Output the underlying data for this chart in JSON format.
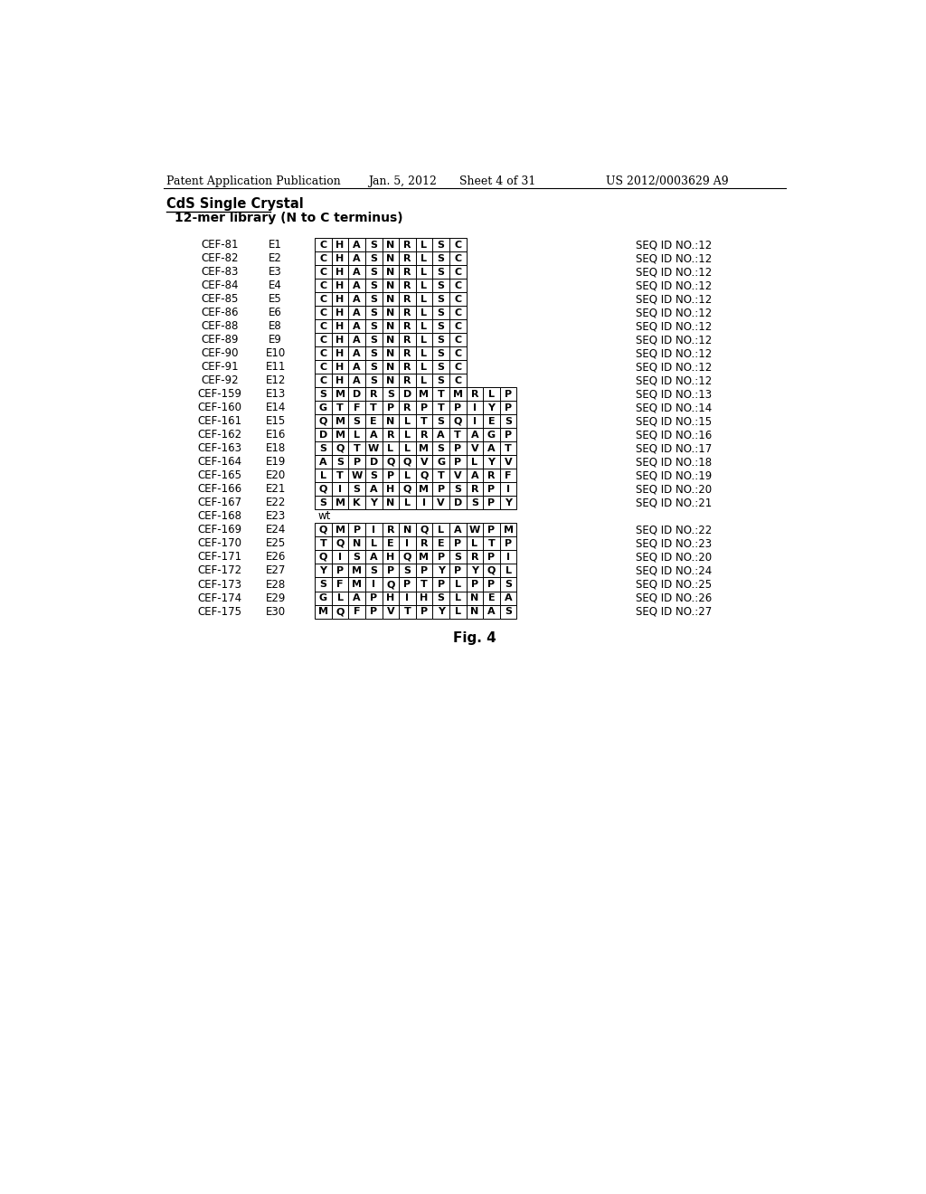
{
  "header_left": "Patent Application Publication",
  "header_date": "Jan. 5, 2012",
  "header_sheet": "Sheet 4 of 31",
  "header_right": "US 2012/0003629 A9",
  "title1": "CdS Single Crystal",
  "title2": "12-mer library (N to C terminus)",
  "fig_label": "Fig. 4",
  "rows": [
    {
      "cef": "CEF-81",
      "e": "E1",
      "seq": "C H A S N R L S C",
      "seq_id": "SEQ ID NO.:12",
      "wt": false,
      "short": true
    },
    {
      "cef": "CEF-82",
      "e": "E2",
      "seq": "C H A S N R L S C",
      "seq_id": "SEQ ID NO.:12",
      "wt": false,
      "short": true
    },
    {
      "cef": "CEF-83",
      "e": "E3",
      "seq": "C H A S N R L S C",
      "seq_id": "SEQ ID NO.:12",
      "wt": false,
      "short": true
    },
    {
      "cef": "CEF-84",
      "e": "E4",
      "seq": "C H A S N R L S C",
      "seq_id": "SEQ ID NO.:12",
      "wt": false,
      "short": true
    },
    {
      "cef": "CEF-85",
      "e": "E5",
      "seq": "C H A S N R L S C",
      "seq_id": "SEQ ID NO.:12",
      "wt": false,
      "short": true
    },
    {
      "cef": "CEF-86",
      "e": "E6",
      "seq": "C H A S N R L S C",
      "seq_id": "SEQ ID NO.:12",
      "wt": false,
      "short": true
    },
    {
      "cef": "CEF-88",
      "e": "E8",
      "seq": "C H A S N R L S C",
      "seq_id": "SEQ ID NO.:12",
      "wt": false,
      "short": true
    },
    {
      "cef": "CEF-89",
      "e": "E9",
      "seq": "C H A S N R L S C",
      "seq_id": "SEQ ID NO.:12",
      "wt": false,
      "short": true
    },
    {
      "cef": "CEF-90",
      "e": "E10",
      "seq": "C H A S N R L S C",
      "seq_id": "SEQ ID NO.:12",
      "wt": false,
      "short": true
    },
    {
      "cef": "CEF-91",
      "e": "E11",
      "seq": "C H A S N R L S C",
      "seq_id": "SEQ ID NO.:12",
      "wt": false,
      "short": true
    },
    {
      "cef": "CEF-92",
      "e": "E12",
      "seq": "C H A S N R L S C",
      "seq_id": "SEQ ID NO.:12",
      "wt": false,
      "short": true
    },
    {
      "cef": "CEF-159",
      "e": "E13",
      "seq": "S M D R S D M T M R L P",
      "seq_id": "SEQ ID NO.:13",
      "wt": false,
      "short": false
    },
    {
      "cef": "CEF-160",
      "e": "E14",
      "seq": "G T F T P R P T P I Y P",
      "seq_id": "SEQ ID NO.:14",
      "wt": false,
      "short": false
    },
    {
      "cef": "CEF-161",
      "e": "E15",
      "seq": "Q M S E N L T S Q I E S",
      "seq_id": "SEQ ID NO.:15",
      "wt": false,
      "short": false
    },
    {
      "cef": "CEF-162",
      "e": "E16",
      "seq": "D M L A R L R A T A G P",
      "seq_id": "SEQ ID NO.:16",
      "wt": false,
      "short": false
    },
    {
      "cef": "CEF-163",
      "e": "E18",
      "seq": "S Q T W L L M S P V A T",
      "seq_id": "SEQ ID NO.:17",
      "wt": false,
      "short": false
    },
    {
      "cef": "CEF-164",
      "e": "E19",
      "seq": "A S P D Q Q V G P L Y V",
      "seq_id": "SEQ ID NO.:18",
      "wt": false,
      "short": false
    },
    {
      "cef": "CEF-165",
      "e": "E20",
      "seq": "L T W S P L Q T V A R F",
      "seq_id": "SEQ ID NO.:19",
      "wt": false,
      "short": false
    },
    {
      "cef": "CEF-166",
      "e": "E21",
      "seq": "Q I S A H Q M P S R P I",
      "seq_id": "SEQ ID NO.:20",
      "wt": false,
      "short": false
    },
    {
      "cef": "CEF-167",
      "e": "E22",
      "seq": "S M K Y N L I V D S P Y",
      "seq_id": "SEQ ID NO.:21",
      "wt": false,
      "short": false
    },
    {
      "cef": "CEF-168",
      "e": "E23",
      "seq": "",
      "seq_id": "",
      "wt": true,
      "short": false
    },
    {
      "cef": "CEF-169",
      "e": "E24",
      "seq": "Q M P I R N Q L A W P M",
      "seq_id": "SEQ ID NO.:22",
      "wt": false,
      "short": false
    },
    {
      "cef": "CEF-170",
      "e": "E25",
      "seq": "T Q N L E I R E P L T P",
      "seq_id": "SEQ ID NO.:23",
      "wt": false,
      "short": false
    },
    {
      "cef": "CEF-171",
      "e": "E26",
      "seq": "Q I S A H Q M P S R P I",
      "seq_id": "SEQ ID NO.:20",
      "wt": false,
      "short": false
    },
    {
      "cef": "CEF-172",
      "e": "E27",
      "seq": "Y P M S P S P Y P Y Q L",
      "seq_id": "SEQ ID NO.:24",
      "wt": false,
      "short": false
    },
    {
      "cef": "CEF-173",
      "e": "E28",
      "seq": "S F M I Q P T P L P P S",
      "seq_id": "SEQ ID NO.:25",
      "wt": false,
      "short": false
    },
    {
      "cef": "CEF-174",
      "e": "E29",
      "seq": "G L A P H I H S L N E A",
      "seq_id": "SEQ ID NO.:26",
      "wt": false,
      "short": false
    },
    {
      "cef": "CEF-175",
      "e": "E30",
      "seq": "M Q F P V T P Y L N A S",
      "seq_id": "SEQ ID NO.:27",
      "wt": false,
      "short": false
    }
  ]
}
